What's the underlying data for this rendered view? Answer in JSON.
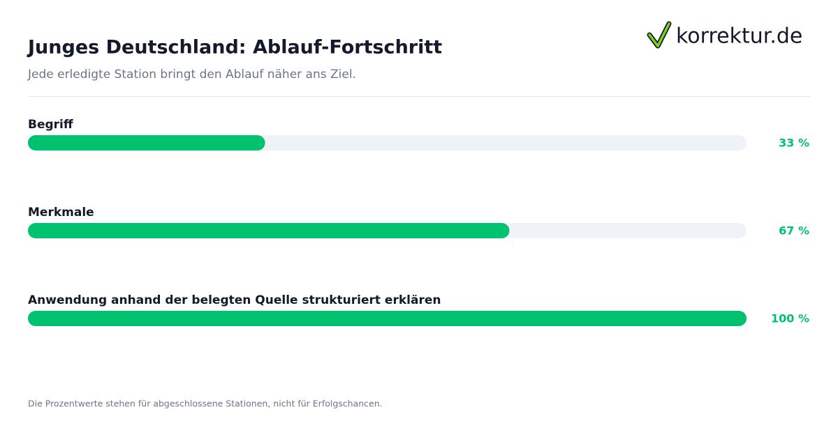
{
  "chart_data": {
    "type": "bar",
    "orientation": "horizontal",
    "title": "Junges Deutschland: Ablauf-Fortschritt",
    "subtitle": "Jede erledigte Station bringt den Ablauf näher ans Ziel.",
    "logo": "korrektur.de",
    "categories": [
      "Begriff",
      "Merkmale",
      "Anwendung anhand der belegten Quelle strukturiert erklären"
    ],
    "values": [
      33,
      67,
      100
    ],
    "value_labels": [
      "33 %",
      "67 %",
      "100 %"
    ],
    "color": "#00c16e",
    "xlim": [
      0,
      100
    ],
    "footnote": "Die Prozentwerte stehen für abgeschlossene Stationen, nicht für Erfolgschancen."
  }
}
